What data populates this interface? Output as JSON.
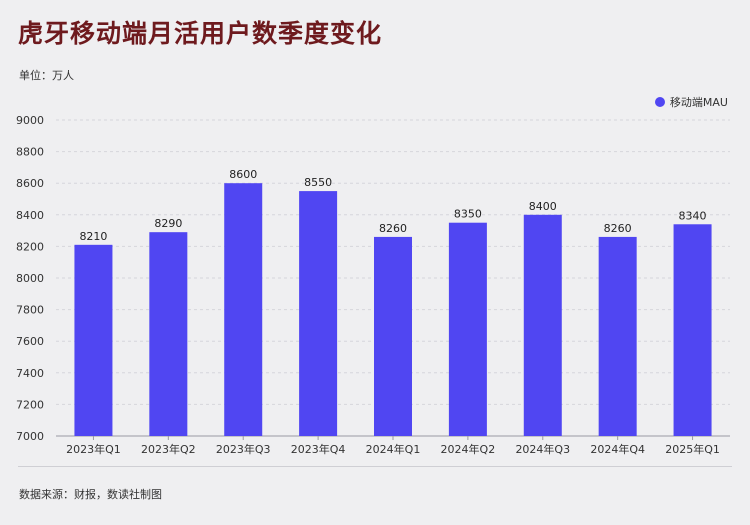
{
  "title": "虎牙移动端月活用户数季度变化",
  "unit_label": "单位：万人",
  "source": "数据来源：财报，数读社制图",
  "colors": {
    "bar": "#5046f2",
    "title": "#6e1a1e",
    "grid": "#d6d6dc",
    "axis": "#9a9aa2"
  },
  "chart_data": {
    "type": "bar",
    "categories": [
      "2023年Q1",
      "2023年Q2",
      "2023年Q3",
      "2023年Q4",
      "2024年Q1",
      "2024年Q2",
      "2024年Q3",
      "2024年Q4",
      "2025年Q1"
    ],
    "series": [
      {
        "name": "移动端MAU",
        "values": [
          8210,
          8290,
          8600,
          8550,
          8260,
          8350,
          8400,
          8260,
          8340
        ]
      }
    ],
    "ylim": [
      7000,
      9000
    ],
    "yticks": [
      7000,
      7200,
      7400,
      7600,
      7800,
      8000,
      8200,
      8400,
      8600,
      8800,
      9000
    ],
    "grid": true,
    "legend_position": "top-right",
    "data_labels": true
  }
}
